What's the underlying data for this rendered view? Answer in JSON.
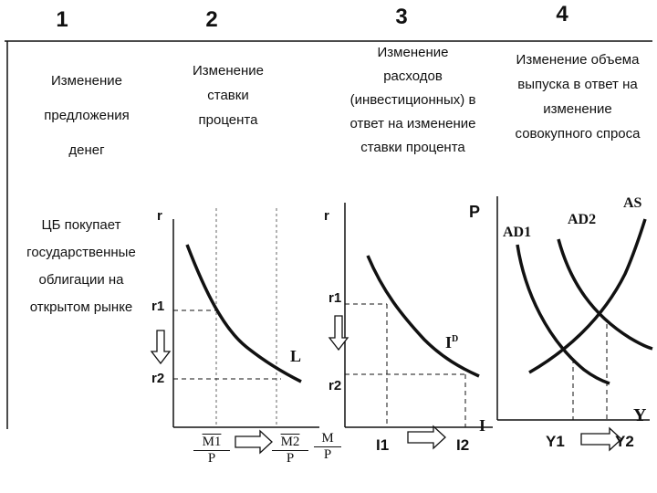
{
  "columns": [
    {
      "number": "1",
      "heading": [
        "Изменение",
        "предложения",
        "денег"
      ]
    },
    {
      "number": "2",
      "heading": [
        "Изменение",
        "ставки",
        "процента"
      ]
    },
    {
      "number": "3",
      "heading": [
        "Изменение",
        "расходов",
        "(инвестиционных) в",
        "ответ на изменение",
        "ставки процента"
      ]
    },
    {
      "number": "4",
      "heading": [
        "Изменение объема",
        "выпуска в ответ на",
        "изменение",
        "совокупного спроса"
      ]
    }
  ],
  "step1_text": [
    "ЦБ покупает",
    "государственные",
    "облигации на",
    "открытом рынке"
  ],
  "panel_money": {
    "axis_y": "r",
    "r1": "r1",
    "r2": "r2",
    "curve": "L",
    "m1": {
      "top": "M1",
      "bottom": "P"
    },
    "m2": {
      "top": "M2",
      "bottom": "P"
    },
    "m_axis": {
      "top": "M",
      "bottom": "P"
    }
  },
  "panel_invest": {
    "axis_y": "r",
    "r1": "r1",
    "r2": "r2",
    "curve": "I",
    "curve_sup": "D",
    "i1": "I1",
    "i2": "I2",
    "axis_x": "I"
  },
  "panel_adas": {
    "axis_y": "P",
    "ad1": "AD1",
    "ad2": "AD2",
    "as": "AS",
    "axis_x": "Y",
    "y1": "Y1",
    "y2": "Y2"
  }
}
